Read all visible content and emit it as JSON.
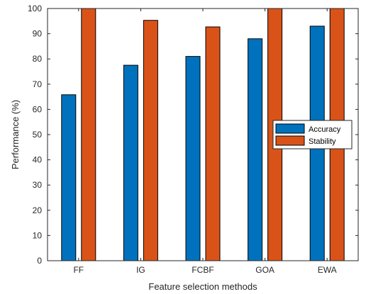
{
  "chart_data": {
    "type": "bar",
    "xlabel": "Feature selection methods",
    "ylabel": "Performance (%)",
    "categories": [
      "FF",
      "IG",
      "FCBF",
      "GOA",
      "EWA"
    ],
    "series": [
      {
        "name": "Accuracy",
        "values": [
          65.8,
          77.5,
          81.0,
          88.0,
          93.0
        ],
        "color": "#0072BD"
      },
      {
        "name": "Stability",
        "values": [
          100,
          95.3,
          92.7,
          100,
          100
        ],
        "color": "#D95319"
      }
    ],
    "ylim": [
      0,
      100
    ],
    "yticks": [
      0,
      10,
      20,
      30,
      40,
      50,
      60,
      70,
      80,
      90,
      100
    ],
    "grid": false,
    "legend_position": "right"
  }
}
